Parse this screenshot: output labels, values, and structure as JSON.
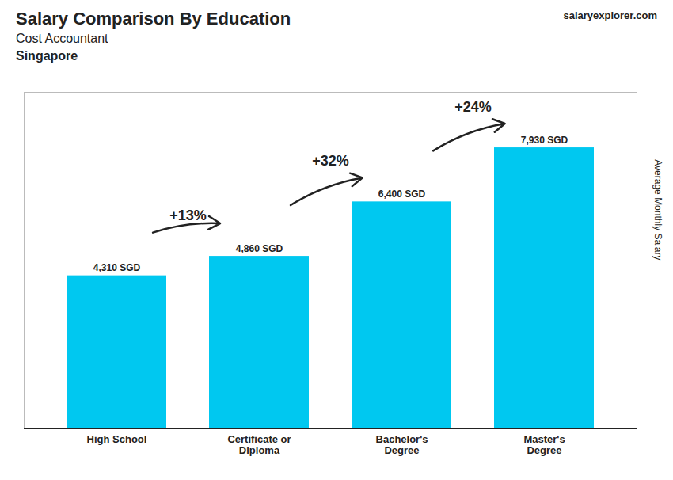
{
  "chart_data": {
    "type": "bar",
    "title": "Salary Comparison By Education",
    "subtitle": "Cost Accountant",
    "location": "Singapore",
    "caption": "salaryexplorer.com",
    "ylabel": "Average Monthly Salary",
    "categories": [
      "High School",
      "Certificate or\nDiploma",
      "Bachelor's\nDegree",
      "Master's\nDegree"
    ],
    "values": [
      4310,
      4860,
      6400,
      7930
    ],
    "value_labels": [
      "4,310 SGD",
      "4,860 SGD",
      "6,400 SGD",
      "7,930 SGD"
    ],
    "data_labels": true,
    "annotations": [
      "+13%",
      "+32%",
      "+24%"
    ],
    "color": "#00c8f0",
    "ylim": [
      0,
      9500
    ],
    "tick_labels": "x",
    "grid": false
  }
}
